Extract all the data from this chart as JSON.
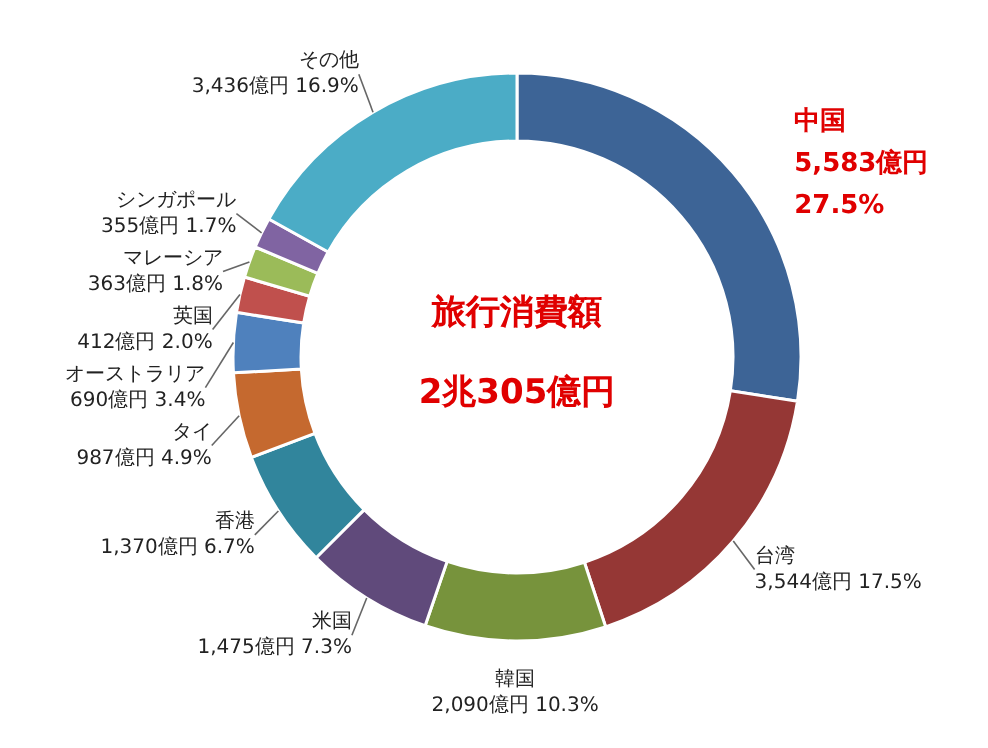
{
  "chart_data": {
    "type": "donut",
    "title": "旅行消費額",
    "subtitle": "2兆305億円",
    "categories": [
      "中国",
      "台湾",
      "韓国",
      "米国",
      "香港",
      "タイ",
      "オーストラリア",
      "英国",
      "マレーシア",
      "シンガポール",
      "その他"
    ],
    "values": [
      5583,
      3544,
      2090,
      1475,
      1370,
      987,
      690,
      412,
      363,
      355,
      3436
    ],
    "value_labels": [
      "5,583億円 27.5%",
      "3,544億円 17.5%",
      "2,090億円 10.3%",
      "1,475億円 7.3%",
      "1,370億円 6.7%",
      "987億円 4.9%",
      "690億円 3.4%",
      "412億円 2.0%",
      "363億円 1.8%",
      "355億円 1.7%",
      "3,436億円 16.9%"
    ],
    "colors": [
      "#3d6496",
      "#953735",
      "#77933c",
      "#604a7b",
      "#31859c",
      "#c5692f",
      "#4f81bd",
      "#c0504d",
      "#9bbb59",
      "#8064a2",
      "#4bacc6"
    ]
  }
}
